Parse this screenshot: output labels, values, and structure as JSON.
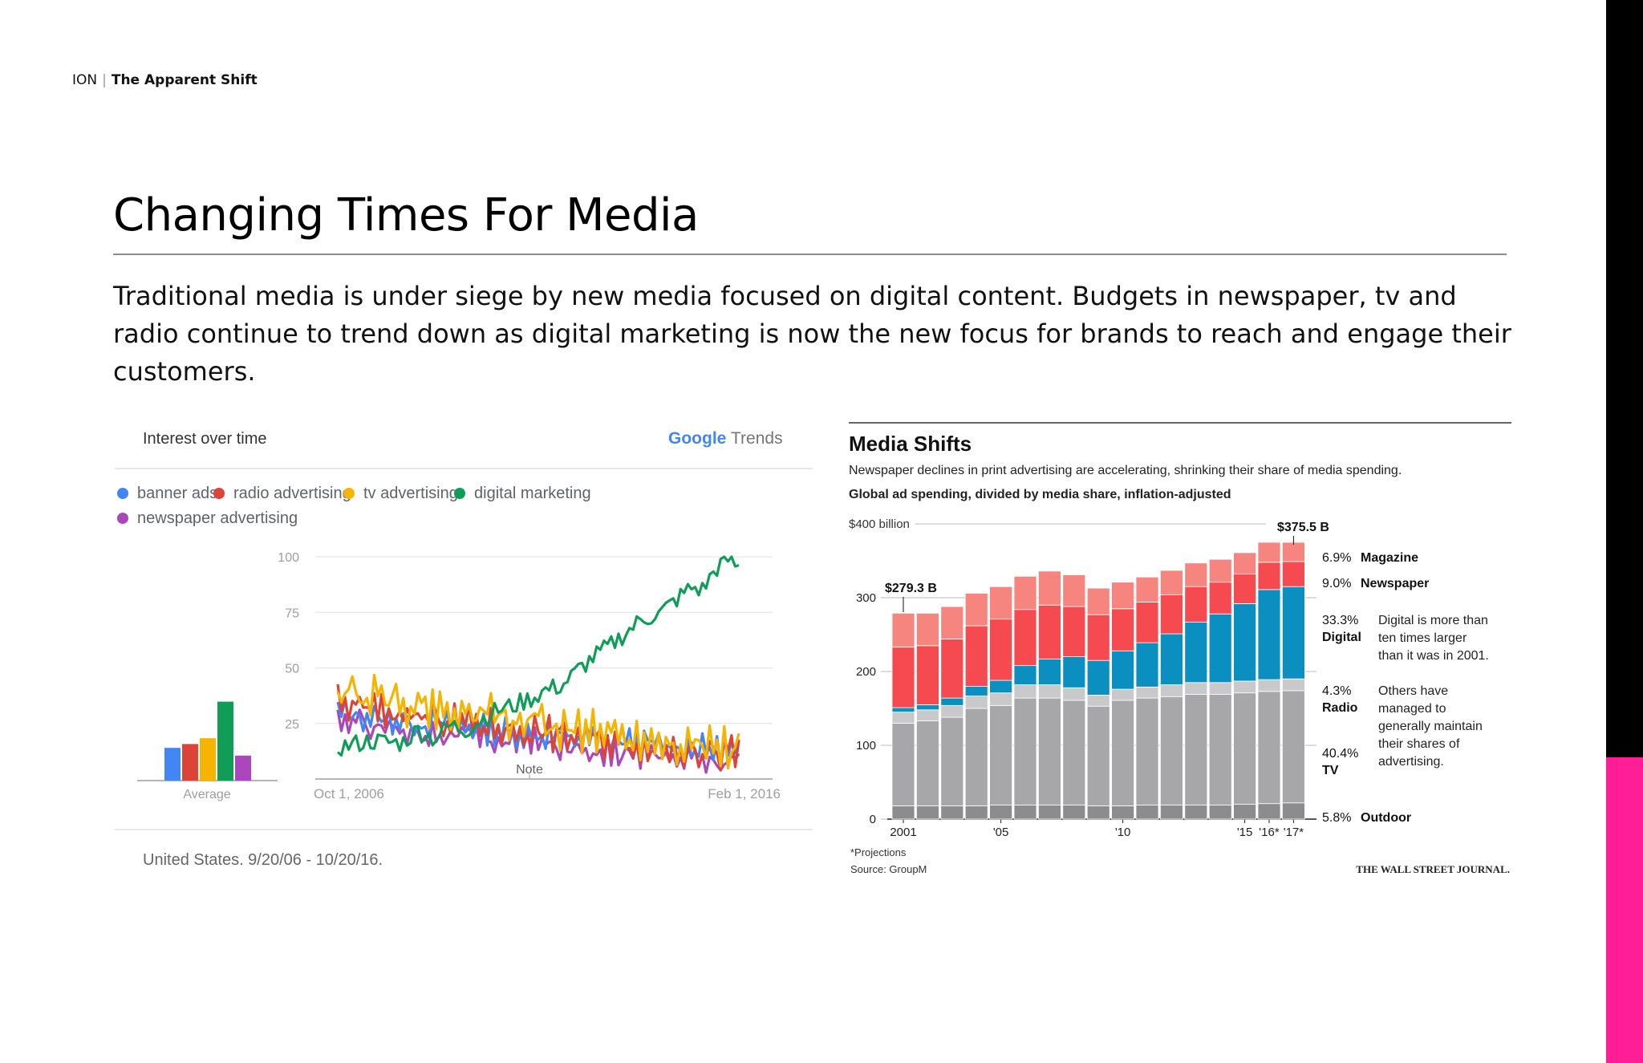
{
  "header": {
    "brand": "ION",
    "separator": "|",
    "section": "The Apparent Shift"
  },
  "page": {
    "title": "Changing Times For Media",
    "intro": "Traditional media is under siege by new media focused on digital content.  Budgets in newspaper, tv and radio continue to trend down as digital marketing is now the new focus for brands to reach and engage their customers."
  },
  "colors": {
    "accent_pink": "#ff1e96",
    "edge_black": "#000000"
  },
  "chart_data": [
    {
      "type": "line",
      "title": "Interest over time",
      "brand": {
        "google": "Google",
        "trends": "Trends"
      },
      "legend": [
        "banner ads",
        "radio advertising",
        "tv advertising",
        "digital marketing",
        "newspaper advertising"
      ],
      "series_colors": [
        "#4285f4",
        "#db4437",
        "#f4b400",
        "#0f9d58",
        "#ab47bc"
      ],
      "ylim": [
        0,
        100
      ],
      "yticks": [
        "100",
        "75",
        "50",
        "25"
      ],
      "x_start_label": "Oct 1, 2006",
      "x_end_label": "Feb 1, 2016",
      "note_label": "Note",
      "average_label": "Average",
      "averages": [
        17,
        19,
        22,
        41,
        13
      ],
      "footer": "United States. 9/20/06 - 10/20/16.",
      "series": [
        {
          "name": "banner ads",
          "start": 30,
          "end": 12,
          "noise": 4
        },
        {
          "name": "radio advertising",
          "start": 34,
          "end": 11,
          "noise": 5
        },
        {
          "name": "tv advertising",
          "start": 40,
          "end": 13,
          "noise": 6
        },
        {
          "name": "digital marketing",
          "start": 13,
          "end": 98,
          "noise": 4
        },
        {
          "name": "newspaper advertising",
          "start": 27,
          "end": 7,
          "noise": 4
        }
      ],
      "digital_marketing_path": [
        [
          0,
          14
        ],
        [
          0.08,
          17
        ],
        [
          0.16,
          16
        ],
        [
          0.2,
          22
        ],
        [
          0.24,
          18
        ],
        [
          0.28,
          24
        ],
        [
          0.32,
          22
        ],
        [
          0.36,
          27
        ],
        [
          0.4,
          31
        ],
        [
          0.44,
          33
        ],
        [
          0.48,
          36
        ],
        [
          0.52,
          40
        ],
        [
          0.56,
          42
        ],
        [
          0.6,
          49
        ],
        [
          0.64,
          55
        ],
        [
          0.68,
          60
        ],
        [
          0.72,
          66
        ],
        [
          0.76,
          72
        ],
        [
          0.8,
          74
        ],
        [
          0.84,
          80
        ],
        [
          0.88,
          86
        ],
        [
          0.91,
          85
        ],
        [
          0.94,
          94
        ],
        [
          0.97,
          99
        ],
        [
          1,
          95
        ]
      ]
    },
    {
      "type": "bar",
      "title": "Media Shifts",
      "subtitle": "Newspaper declines in print advertising are accelerating, shrinking their share of media spending.",
      "subtitle2": "Global ad spending, divided by media share, inflation-adjusted",
      "ylabel_top": "$400 billion",
      "yticks": [
        "300",
        "200",
        "100",
        "0"
      ],
      "ylim": [
        0,
        400
      ],
      "categories": [
        "2001",
        "2002",
        "2003",
        "2004",
        "2005",
        "2006",
        "2007",
        "2008",
        "2009",
        "2010",
        "2011",
        "2012",
        "2013",
        "2014",
        "2015",
        "2016",
        "2017"
      ],
      "x_labels": [
        "2001",
        "'05",
        "'10",
        "'15",
        "'16*",
        "'17*"
      ],
      "series": [
        {
          "name": "Outdoor",
          "values": [
            18,
            18,
            18,
            18,
            19,
            19,
            19,
            19,
            18,
            18,
            19,
            19,
            19,
            19,
            20,
            21,
            22
          ]
        },
        {
          "name": "TV",
          "values": [
            112,
            115,
            120,
            132,
            135,
            145,
            145,
            142,
            135,
            143,
            145,
            147,
            150,
            150,
            151,
            152,
            152
          ]
        },
        {
          "name": "Radio",
          "values": [
            15,
            15,
            16,
            17,
            17,
            18,
            18,
            17,
            15,
            15,
            15,
            16,
            16,
            16,
            16,
            16,
            16
          ]
        },
        {
          "name": "Digital",
          "values": [
            6,
            7,
            10,
            13,
            17,
            26,
            35,
            42,
            47,
            52,
            60,
            69,
            82,
            93,
            105,
            122,
            125
          ]
        },
        {
          "name": "Newspaper",
          "values": [
            82,
            80,
            80,
            82,
            83,
            76,
            73,
            68,
            62,
            57,
            55,
            53,
            48,
            43,
            40,
            37,
            34
          ]
        },
        {
          "name": "Magazine",
          "values": [
            46,
            44,
            44,
            44,
            44,
            45,
            46,
            43,
            36,
            36,
            34,
            33,
            32,
            31,
            29,
            27,
            26
          ]
        }
      ],
      "series_colors": [
        "#8c8b8e",
        "#a7a6a9",
        "#c9c8ca",
        "#0b8fc1",
        "#f54a4f",
        "#f7857f"
      ],
      "annotations": {
        "first_total": "$279.3 B",
        "last_total": "$375.5 B",
        "shares": [
          {
            "pct": "6.9%",
            "name": "Magazine"
          },
          {
            "pct": "9.0%",
            "name": "Newspaper"
          },
          {
            "pct": "33.3%",
            "name": "Digital",
            "note": [
              "Digital is more than",
              "ten times larger",
              "than it was in 2001."
            ]
          },
          {
            "pct": "4.3%",
            "name": "Radio",
            "note": [
              "Others have",
              "managed to",
              "generally maintain",
              "their shares of",
              "advertising."
            ]
          },
          {
            "pct": "40.4%",
            "name": "TV"
          },
          {
            "pct": "5.8%",
            "name": "Outdoor"
          }
        ]
      },
      "footnote": "*Projections",
      "source": "Source: GroupM",
      "credit": "THE WALL STREET JOURNAL."
    }
  ]
}
